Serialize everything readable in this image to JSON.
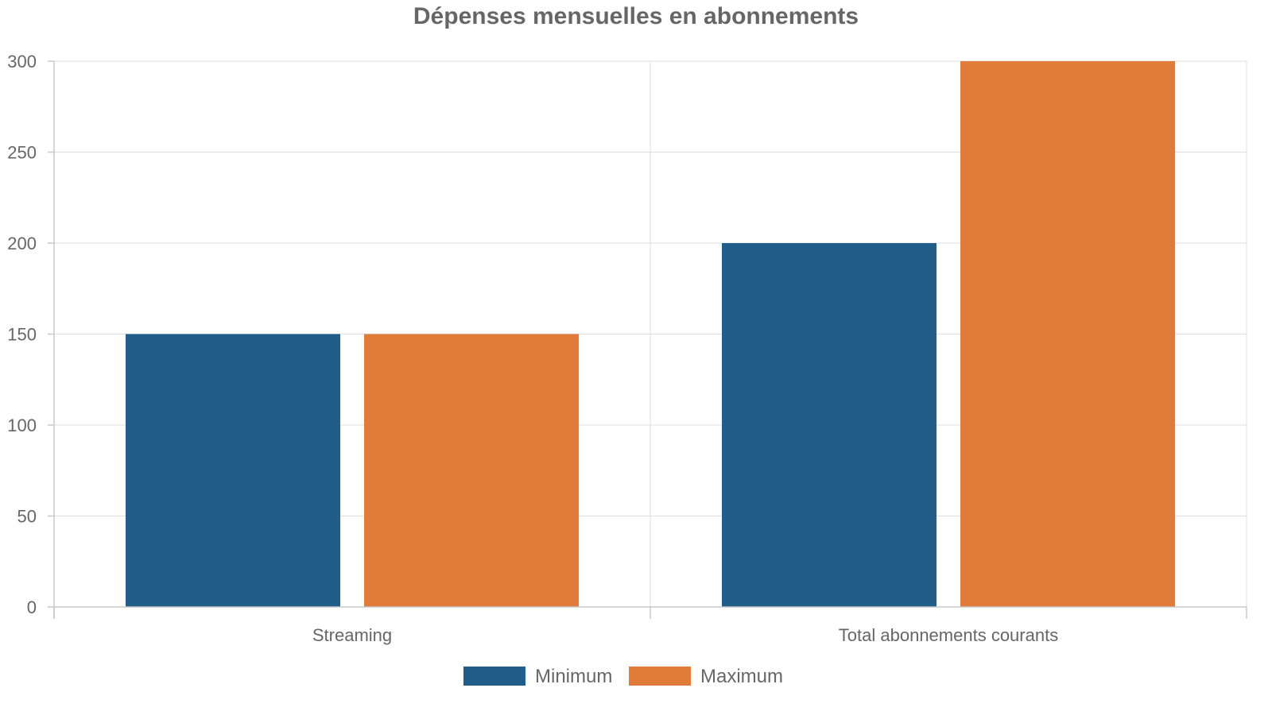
{
  "chart_data": {
    "type": "bar",
    "title": "Dépenses mensuelles en abonnements",
    "xlabel": "",
    "ylabel": "",
    "categories": [
      "Streaming",
      "Total abonnements courants"
    ],
    "series": [
      {
        "name": "Minimum",
        "values": [
          150,
          200
        ],
        "color": "#205e89"
      },
      {
        "name": "Maximum",
        "values": [
          150,
          300
        ],
        "color": "#e07b3a"
      }
    ],
    "ylim": [
      0,
      300
    ],
    "yticks": [
      0,
      50,
      100,
      150,
      200,
      250,
      300
    ],
    "grid": true,
    "legend_position": "bottom"
  }
}
